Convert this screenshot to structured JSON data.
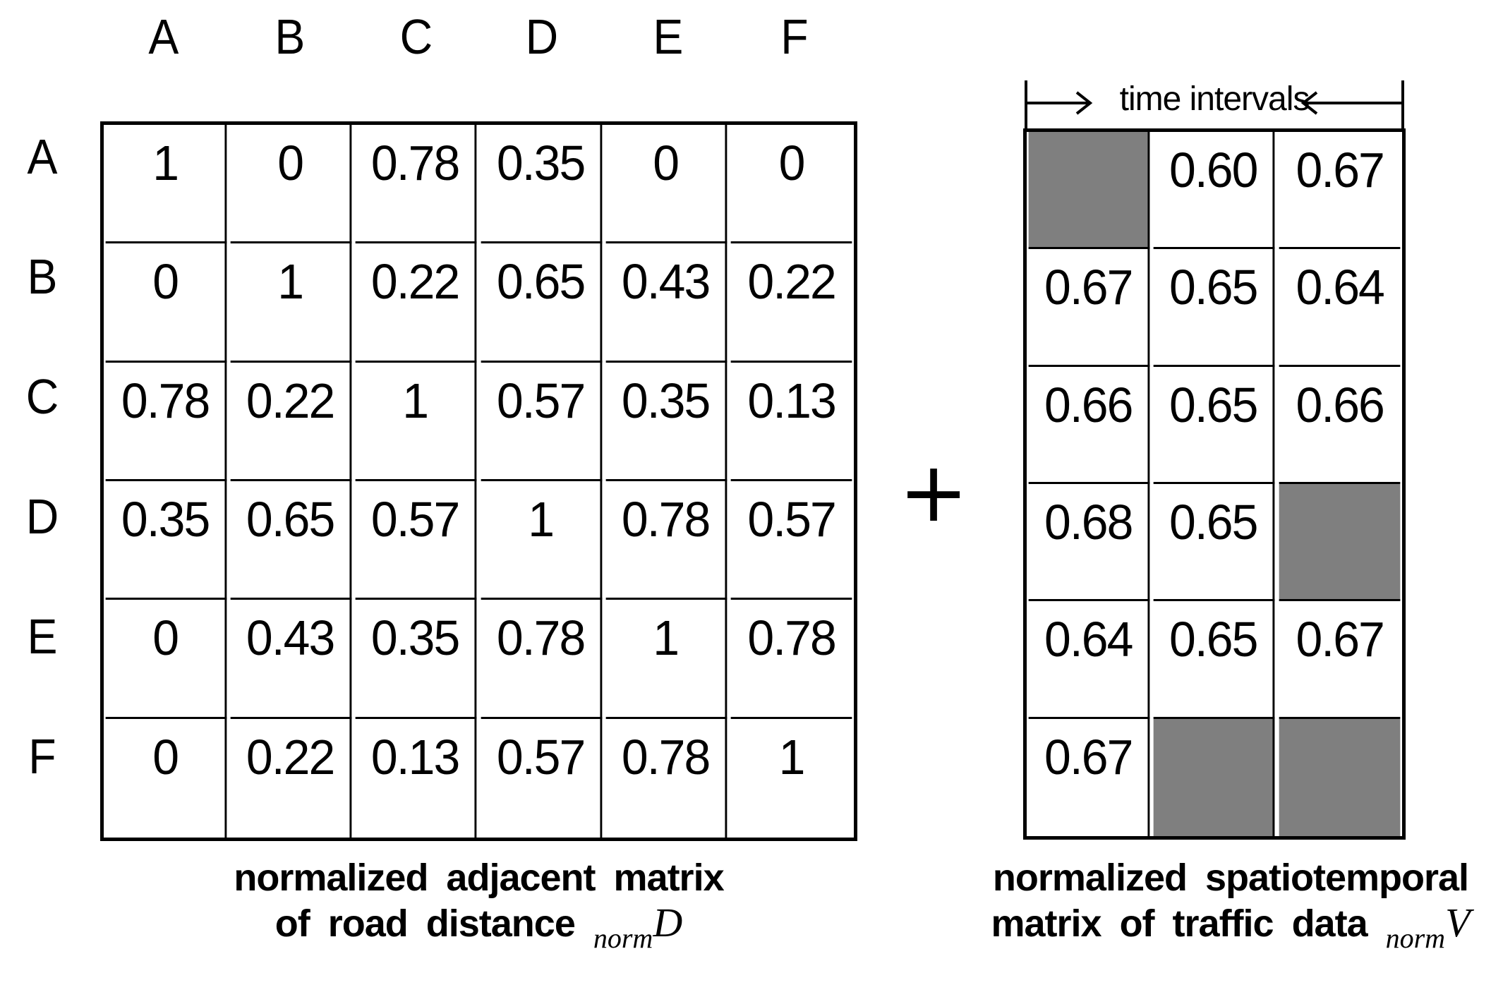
{
  "left_matrix": {
    "col_headers": [
      "A",
      "B",
      "C",
      "D",
      "E",
      "F"
    ],
    "row_headers": [
      "A",
      "B",
      "C",
      "D",
      "E",
      "F"
    ],
    "rows": [
      [
        "1",
        "0",
        "0.78",
        "0.35",
        "0",
        "0"
      ],
      [
        "0",
        "1",
        "0.22",
        "0.65",
        "0.43",
        "0.22"
      ],
      [
        "0.78",
        "0.22",
        "1",
        "0.57",
        "0.35",
        "0.13"
      ],
      [
        "0.35",
        "0.65",
        "0.57",
        "1",
        "0.78",
        "0.57"
      ],
      [
        "0",
        "0.43",
        "0.35",
        "0.78",
        "1",
        "0.78"
      ],
      [
        "0",
        "0.22",
        "0.13",
        "0.57",
        "0.78",
        "1"
      ]
    ],
    "caption_line1": "normalized adjacent matrix",
    "caption_line2": "of road distance",
    "caption_math_sub": "norm",
    "caption_math_var": "D"
  },
  "operator": "+",
  "right_matrix": {
    "header_label": "time intervals",
    "rows": [
      [
        null,
        "0.60",
        "0.67"
      ],
      [
        "0.67",
        "0.65",
        "0.64"
      ],
      [
        "0.66",
        "0.65",
        "0.66"
      ],
      [
        "0.68",
        "0.65",
        null
      ],
      [
        "0.64",
        "0.65",
        "0.67"
      ],
      [
        "0.67",
        null,
        null
      ]
    ],
    "gray_cells": [
      [
        0,
        0
      ],
      [
        3,
        2
      ],
      [
        5,
        1
      ],
      [
        5,
        2
      ]
    ],
    "gray_color": "#7f7f7f",
    "caption_line1": "normalized spatiotemporal",
    "caption_line2": "matrix of traffic data",
    "caption_math_sub": "norm",
    "caption_math_var": "V"
  },
  "colors": {
    "border": "#000000",
    "background": "#ffffff",
    "masked_cell": "#7f7f7f"
  }
}
